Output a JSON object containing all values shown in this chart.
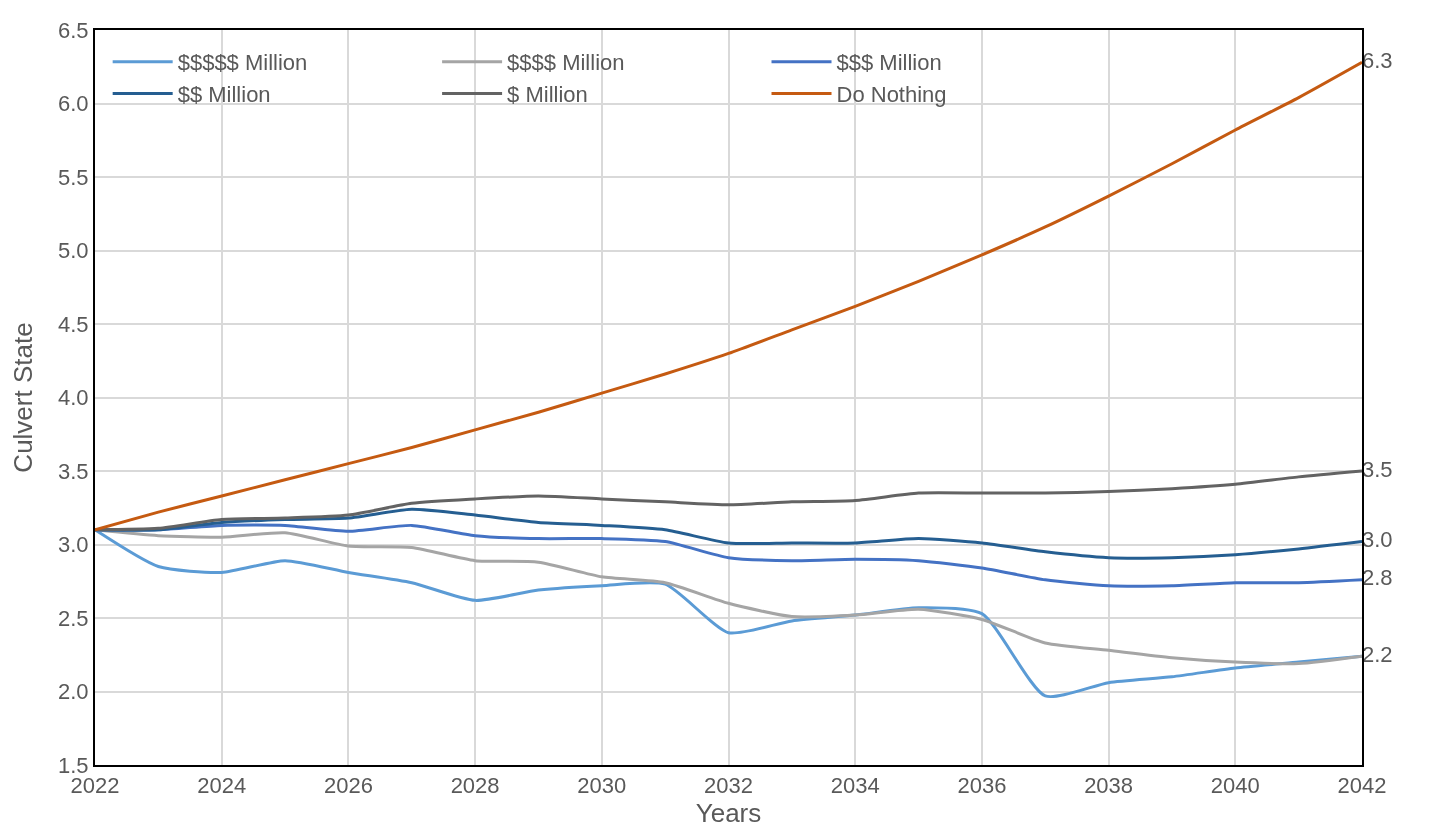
{
  "chart_data": {
    "type": "line",
    "xlabel": "Years",
    "ylabel": "Culvert State",
    "x": [
      2022,
      2023,
      2024,
      2025,
      2026,
      2027,
      2028,
      2029,
      2030,
      2031,
      2032,
      2033,
      2034,
      2035,
      2036,
      2037,
      2038,
      2039,
      2040,
      2041,
      2042
    ],
    "series": [
      {
        "name": "$$$$$ Million",
        "color": "#5b9bd5",
        "values": [
          3.1,
          2.85,
          2.81,
          2.89,
          2.81,
          2.74,
          2.62,
          2.69,
          2.72,
          2.73,
          2.4,
          2.48,
          2.52,
          2.57,
          2.53,
          1.97,
          2.06,
          2.1,
          2.16,
          2.2,
          2.24
        ],
        "value_labels": [
          null,
          null,
          null,
          null,
          null,
          null,
          null,
          null,
          null,
          null,
          null,
          null,
          null,
          null,
          null,
          null,
          null,
          null,
          null,
          null,
          "2.2"
        ]
      },
      {
        "name": "$$$$ Million",
        "color": "#a5a5a5",
        "values": [
          3.1,
          3.06,
          3.05,
          3.08,
          2.99,
          2.98,
          2.89,
          2.88,
          2.78,
          2.74,
          2.6,
          2.51,
          2.52,
          2.56,
          2.49,
          2.33,
          2.28,
          2.23,
          2.2,
          2.19,
          2.24
        ]
      },
      {
        "name": "$$$ Million",
        "color": "#4472c4",
        "values": [
          3.1,
          3.1,
          3.13,
          3.13,
          3.09,
          3.13,
          3.06,
          3.04,
          3.04,
          3.02,
          2.91,
          2.89,
          2.9,
          2.89,
          2.84,
          2.76,
          2.72,
          2.72,
          2.74,
          2.74,
          2.76
        ],
        "value_labels": [
          null,
          null,
          null,
          null,
          null,
          null,
          null,
          null,
          null,
          null,
          null,
          null,
          null,
          null,
          null,
          null,
          null,
          null,
          null,
          null,
          "2.8"
        ]
      },
      {
        "name": "$$ Million",
        "color": "#255e91",
        "values": [
          3.1,
          3.1,
          3.15,
          3.17,
          3.18,
          3.24,
          3.2,
          3.15,
          3.13,
          3.1,
          3.01,
          3.01,
          3.01,
          3.04,
          3.01,
          2.95,
          2.91,
          2.91,
          2.93,
          2.97,
          3.02
        ],
        "value_labels": [
          null,
          null,
          null,
          null,
          null,
          null,
          null,
          null,
          null,
          null,
          null,
          null,
          null,
          null,
          null,
          null,
          null,
          null,
          null,
          null,
          "3.0"
        ]
      },
      {
        "name": "$ Million",
        "color": "#636363",
        "values": [
          3.1,
          3.11,
          3.17,
          3.18,
          3.2,
          3.28,
          3.31,
          3.33,
          3.31,
          3.29,
          3.27,
          3.29,
          3.3,
          3.35,
          3.35,
          3.35,
          3.36,
          3.38,
          3.41,
          3.46,
          3.5
        ],
        "value_labels": [
          null,
          null,
          null,
          null,
          null,
          null,
          null,
          null,
          null,
          null,
          null,
          null,
          null,
          null,
          null,
          null,
          null,
          null,
          null,
          null,
          "3.5"
        ]
      },
      {
        "name": "Do Nothing",
        "color": "#c55a11",
        "values": [
          3.1,
          3.22,
          3.33,
          3.44,
          3.55,
          3.66,
          3.78,
          3.9,
          4.03,
          4.16,
          4.3,
          4.46,
          4.62,
          4.79,
          4.97,
          5.16,
          5.37,
          5.59,
          5.82,
          6.04,
          6.28
        ],
        "value_labels": [
          null,
          null,
          null,
          null,
          null,
          null,
          null,
          null,
          null,
          null,
          null,
          null,
          null,
          null,
          null,
          null,
          null,
          null,
          null,
          null,
          "6.3"
        ]
      }
    ],
    "xlim": [
      2022,
      2042
    ],
    "xticks": [
      2022,
      2024,
      2026,
      2028,
      2030,
      2032,
      2034,
      2036,
      2038,
      2040,
      2042
    ],
    "ylim": [
      1.5,
      6.5
    ],
    "yticks": [
      1.5,
      {
        "value": 2,
        "label": "2.0"
      },
      2.5,
      {
        "value": 3,
        "label": "3.0"
      },
      3.5,
      {
        "value": 4,
        "label": "4.0"
      },
      4.5,
      {
        "value": 5,
        "label": "5.0"
      },
      5.5,
      {
        "value": 6,
        "label": "6.0"
      },
      6.5
    ],
    "grid": true,
    "legend": "top left",
    "marker": "none",
    "line_style": "solid"
  }
}
